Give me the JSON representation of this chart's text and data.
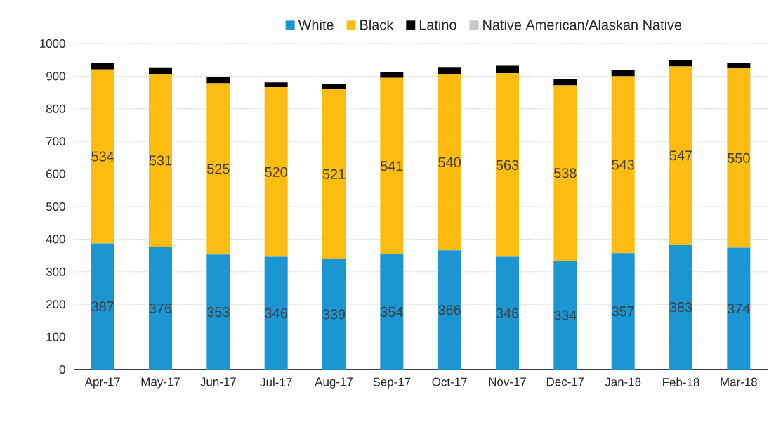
{
  "chart_data": {
    "type": "bar",
    "stacked": true,
    "categories": [
      "Apr-17",
      "May-17",
      "Jun-17",
      "Jul-17",
      "Aug-17",
      "Sep-17",
      "Oct-17",
      "Nov-17",
      "Dec-17",
      "Jan-18",
      "Feb-18",
      "Mar-18"
    ],
    "series": [
      {
        "name": "White",
        "color": "#1b96d3",
        "values": [
          387,
          376,
          353,
          346,
          339,
          354,
          366,
          346,
          334,
          357,
          383,
          374
        ],
        "value_labels": [
          "387",
          "376",
          "353",
          "346",
          "339",
          "354",
          "366",
          "346",
          "334",
          "357",
          "383",
          "374"
        ]
      },
      {
        "name": "Black",
        "color": "#fdbc11",
        "values": [
          534,
          531,
          525,
          520,
          521,
          541,
          540,
          563,
          538,
          543,
          547,
          550
        ],
        "value_labels": [
          "534",
          "531",
          "525",
          "520",
          "521",
          "541",
          "540",
          "563",
          "538",
          "543",
          "547",
          "550"
        ]
      },
      {
        "name": "Latino",
        "color": "#000000",
        "values": [
          19,
          18,
          19,
          15,
          16,
          18,
          20,
          23,
          19,
          18,
          19,
          17
        ]
      },
      {
        "name": "Native American/Alaskan Native",
        "color": "#c8c8c8",
        "values": [
          null,
          null,
          null,
          null,
          null,
          null,
          null,
          null,
          null,
          null,
          null,
          null
        ]
      }
    ],
    "ylim": [
      0,
      1000
    ],
    "yticks": [
      0,
      100,
      200,
      300,
      400,
      500,
      600,
      700,
      800,
      900,
      1000
    ],
    "grid": "y",
    "legend": "top"
  }
}
